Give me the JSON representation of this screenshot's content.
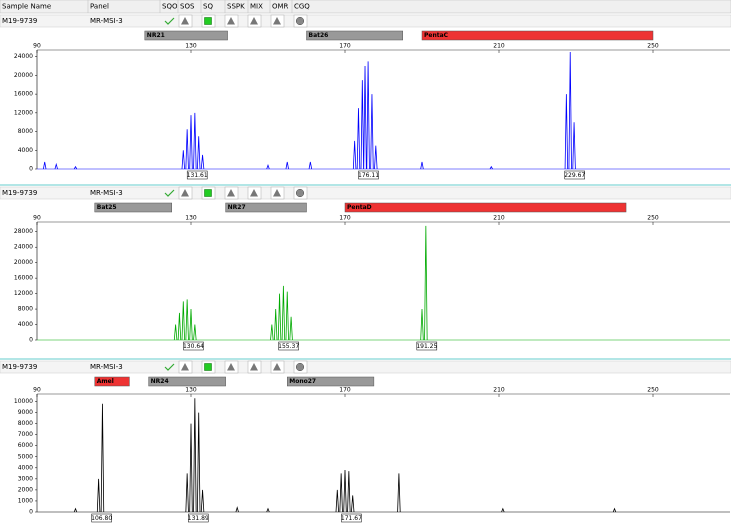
{
  "header": {
    "columns": [
      "Sample Name",
      "Panel",
      "SQO",
      "SOS",
      "SQ",
      "SSPK",
      "MIX",
      "OMR",
      "CGQ"
    ]
  },
  "panels": [
    {
      "sample": "M19-9739",
      "panel": "MR-MSI-3"
    },
    {
      "sample": "M19-9739",
      "panel": "MR-MSI-3"
    },
    {
      "sample": "M19-9739",
      "panel": "MR-MSI-3"
    }
  ],
  "chart_data": [
    {
      "type": "electropherogram",
      "color": "#0000ff",
      "xlim": [
        90,
        270
      ],
      "xticks": [
        90,
        130,
        170,
        210,
        250
      ],
      "ylim": [
        0,
        25000
      ],
      "yticks": [
        0,
        4000,
        8000,
        12000,
        16000,
        20000,
        24000
      ],
      "markers": [
        {
          "name": "NR21",
          "start": 118,
          "end": 139.5,
          "color": "#999999"
        },
        {
          "name": "Bat26",
          "start": 160,
          "end": 185,
          "color": "#999999"
        },
        {
          "name": "PentaC",
          "start": 190,
          "end": 250,
          "color": "#ee3333"
        }
      ],
      "peaks": {
        "x": [
          92,
          95,
          100,
          128,
          129,
          130,
          131,
          132,
          133,
          150,
          155,
          161,
          172.5,
          173.5,
          174.5,
          175.2,
          176,
          177,
          178,
          190,
          208,
          227.5,
          228.5,
          229.5
        ],
        "values": [
          1500,
          1000,
          500,
          4000,
          8500,
          11500,
          12000,
          7000,
          3000,
          800,
          1500,
          1500,
          6000,
          13000,
          19000,
          22000,
          23000,
          16000,
          5000,
          1500,
          500,
          16000,
          25000,
          10000
        ]
      },
      "peak_labels": [
        131.61,
        176.11,
        229.67
      ]
    },
    {
      "type": "electropherogram",
      "color": "#00aa00",
      "xlim": [
        90,
        270
      ],
      "xticks": [
        90,
        130,
        170,
        210,
        250
      ],
      "ylim": [
        0,
        30000
      ],
      "yticks": [
        0,
        4000,
        8000,
        12000,
        16000,
        20000,
        24000,
        28000
      ],
      "markers": [
        {
          "name": "Bat25",
          "start": 105,
          "end": 125,
          "color": "#999999"
        },
        {
          "name": "NR27",
          "start": 139,
          "end": 160,
          "color": "#999999"
        },
        {
          "name": "PentaD",
          "start": 170,
          "end": 243,
          "color": "#ee3333"
        }
      ],
      "peaks": {
        "x": [
          126,
          127,
          128,
          129,
          130,
          131,
          151,
          152,
          153,
          154,
          155,
          156,
          190,
          191
        ],
        "values": [
          4000,
          7000,
          10000,
          10500,
          8000,
          4000,
          4000,
          8000,
          12000,
          14000,
          12500,
          6000,
          8000,
          29500
        ]
      },
      "peak_labels": [
        130.64,
        155.37,
        191.25
      ]
    },
    {
      "type": "electropherogram",
      "color": "#000000",
      "xlim": [
        90,
        270
      ],
      "xticks": [
        90,
        130,
        170,
        210,
        250
      ],
      "ylim": [
        0,
        10500
      ],
      "yticks": [
        0,
        1000,
        2000,
        3000,
        4000,
        5000,
        6000,
        7000,
        8000,
        9000,
        10000
      ],
      "markers": [
        {
          "name": "Amel",
          "start": 105,
          "end": 114,
          "color": "#ee3333"
        },
        {
          "name": "NR24",
          "start": 119,
          "end": 139,
          "color": "#999999"
        },
        {
          "name": "Mono27",
          "start": 155,
          "end": 177.5,
          "color": "#999999"
        }
      ],
      "peaks": {
        "x": [
          100,
          106,
          107,
          129,
          130,
          131,
          132,
          133,
          142,
          150,
          168,
          169,
          170,
          171,
          172,
          184,
          211,
          240
        ],
        "values": [
          300,
          3000,
          9800,
          3500,
          8000,
          10300,
          9000,
          2000,
          400,
          300,
          2000,
          3500,
          3800,
          3700,
          1500,
          3500,
          300,
          300
        ]
      },
      "peak_labels": [
        {
          "value": 106.8,
          "label": "106.80"
        },
        131.89,
        171.67
      ]
    }
  ]
}
